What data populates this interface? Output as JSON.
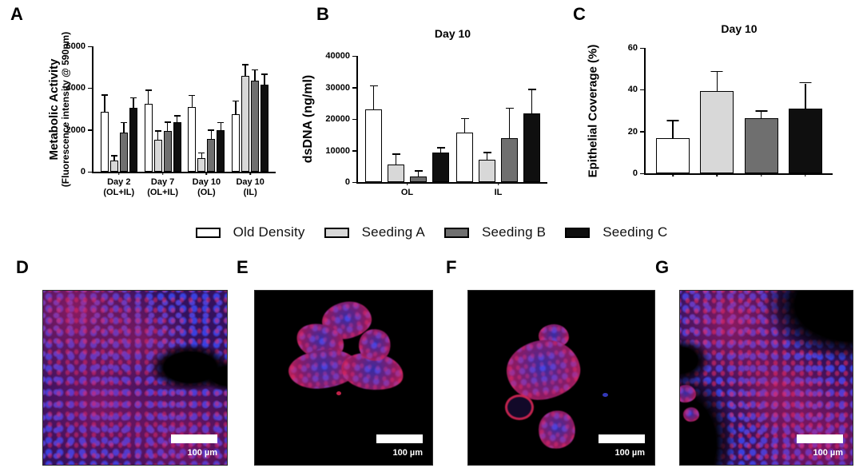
{
  "legend": {
    "items": [
      {
        "label": "Old Density",
        "fill": "#ffffff"
      },
      {
        "label": "Seeding A",
        "fill": "#d8d8d8"
      },
      {
        "label": "Seeding B",
        "fill": "#6f6f6f"
      },
      {
        "label": "Seeding C",
        "fill": "#0f0f0f"
      }
    ]
  },
  "chart_data": [
    {
      "letter": "A",
      "type": "bar",
      "title": "",
      "ylabel": "Metabolic Activity",
      "ylabel2": "(Fluorescence intensity @ 590nm)",
      "ylim": [
        0,
        6000
      ],
      "yticks": [
        0,
        2000,
        4000,
        6000
      ],
      "grid": false,
      "legend_position": "bottom-shared",
      "categories": [
        [
          "Day 2",
          "(OL+IL)"
        ],
        [
          "Day 7",
          "(OL+IL)"
        ],
        [
          "Day 10",
          "(OL)"
        ],
        [
          "Day 10",
          "(IL)"
        ]
      ],
      "series": [
        {
          "name": "Old Density",
          "values": [
            2850,
            3250,
            3100,
            2750
          ],
          "errors": [
            800,
            620,
            520,
            600
          ]
        },
        {
          "name": "Seeding A",
          "values": [
            550,
            1520,
            650,
            4580
          ],
          "errors": [
            180,
            400,
            220,
            520
          ]
        },
        {
          "name": "Seeding B",
          "values": [
            1870,
            1950,
            1570,
            4350
          ],
          "errors": [
            450,
            400,
            380,
            500
          ]
        },
        {
          "name": "Seeding C",
          "values": [
            3050,
            2380,
            1980,
            4170
          ],
          "errors": [
            450,
            260,
            350,
            470
          ]
        }
      ]
    },
    {
      "letter": "B",
      "type": "bar",
      "title": "Day 10",
      "ylabel": "dsDNA (ng/ml)",
      "ylim": [
        0,
        40000
      ],
      "yticks": [
        0,
        10000,
        20000,
        30000,
        40000
      ],
      "grid": false,
      "legend_position": "bottom-shared",
      "categories": [
        [
          "OL"
        ],
        [
          "IL"
        ]
      ],
      "series": [
        {
          "name": "Old Density",
          "values": [
            23000,
            15600
          ],
          "errors": [
            7300,
            4400
          ]
        },
        {
          "name": "Seeding A",
          "values": [
            5500,
            7100
          ],
          "errors": [
            3200,
            2100
          ]
        },
        {
          "name": "Seeding B",
          "values": [
            1900,
            13900
          ],
          "errors": [
            1400,
            9300
          ]
        },
        {
          "name": "Seeding C",
          "values": [
            9400,
            21800
          ],
          "errors": [
            1300,
            7400
          ]
        }
      ]
    },
    {
      "letter": "C",
      "type": "bar",
      "title": "Day 10",
      "ylabel": "Epithelial Coverage (%)",
      "ylim": [
        0,
        60
      ],
      "yticks": [
        0,
        20,
        40,
        60
      ],
      "grid": false,
      "legend_position": "bottom-shared",
      "categories": [
        []
      ],
      "series": [
        {
          "name": "Old Density",
          "values": [
            17
          ],
          "errors": [
            8
          ]
        },
        {
          "name": "Seeding A",
          "values": [
            39.5
          ],
          "errors": [
            9
          ]
        },
        {
          "name": "Seeding B",
          "values": [
            26.5
          ],
          "errors": [
            3
          ]
        },
        {
          "name": "Seeding C",
          "values": [
            31
          ],
          "errors": [
            12
          ]
        }
      ]
    }
  ],
  "micrographs": [
    {
      "letter": "D",
      "scale_bar_label": "100 µm"
    },
    {
      "letter": "E",
      "scale_bar_label": "100 µm"
    },
    {
      "letter": "F",
      "scale_bar_label": "100 µm"
    },
    {
      "letter": "G",
      "scale_bar_label": "100 µm"
    }
  ]
}
